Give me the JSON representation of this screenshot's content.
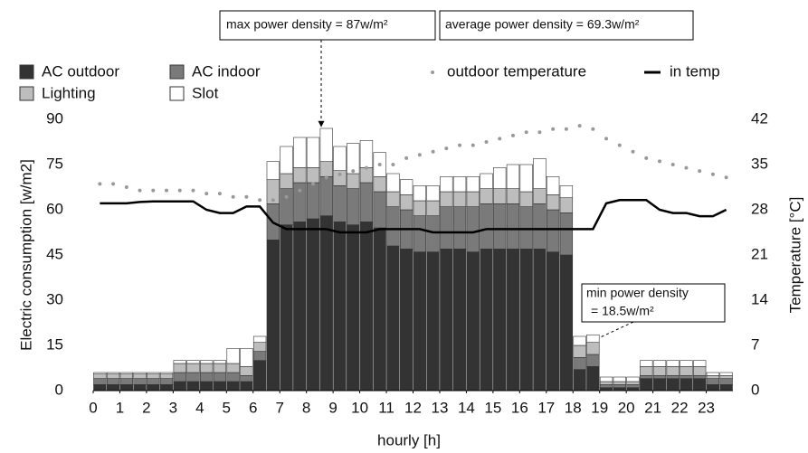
{
  "chart_data": {
    "type": "bar",
    "stacked": true,
    "ylabel": "Electric consumption [w/m2]",
    "y2label": "Temperature [°C]",
    "xlabel": "hourly [h]",
    "x": [
      0.25,
      0.75,
      1.25,
      1.75,
      2.25,
      2.75,
      3.25,
      3.75,
      4.25,
      4.75,
      5.25,
      5.75,
      6.25,
      6.75,
      7.25,
      7.75,
      8.25,
      8.75,
      9.25,
      9.75,
      10.25,
      10.75,
      11.25,
      11.75,
      12.25,
      12.75,
      13.25,
      13.75,
      14.25,
      14.75,
      15.25,
      15.75,
      16.25,
      16.75,
      17.25,
      17.75,
      18.25,
      18.75,
      19.25,
      19.75,
      20.25,
      20.75,
      21.25,
      21.75,
      22.25,
      22.75,
      23.25,
      23.75
    ],
    "xlim": [
      0,
      24
    ],
    "xticks": [
      0,
      1,
      2,
      3,
      4,
      5,
      6,
      7,
      8,
      9,
      10,
      11,
      12,
      13,
      14,
      15,
      16,
      17,
      18,
      19,
      20,
      21,
      22,
      23
    ],
    "ylim": [
      0,
      90
    ],
    "yticks": [
      0,
      15,
      30,
      45,
      60,
      75,
      90
    ],
    "y2lim": [
      0,
      42
    ],
    "y2ticks": [
      0,
      7,
      14,
      21,
      28,
      35,
      42
    ],
    "series": [
      {
        "name": "AC outdoor",
        "color": "#333333",
        "values": [
          2,
          2,
          2,
          2,
          2,
          2,
          3,
          3,
          3,
          3,
          3,
          3,
          10,
          50,
          55,
          56,
          57,
          58,
          56,
          55,
          56,
          54,
          48,
          47,
          46,
          46,
          47,
          47,
          46,
          47,
          47,
          47,
          47,
          47,
          46,
          45,
          7,
          8,
          1,
          1,
          1,
          4,
          4,
          4,
          4,
          4,
          2,
          2
        ]
      },
      {
        "name": "AC indoor",
        "color": "#7a7a7a",
        "values": [
          2,
          2,
          2,
          2,
          2,
          2,
          3,
          3,
          3,
          3,
          3,
          2,
          3,
          12,
          12,
          13,
          12,
          13,
          12,
          12,
          13,
          12,
          13,
          13,
          12,
          12,
          14,
          14,
          15,
          15,
          15,
          15,
          14,
          15,
          14,
          14,
          4,
          4,
          1,
          1,
          1,
          1,
          1,
          1,
          1,
          1,
          2,
          2
        ]
      },
      {
        "name": "Lighting",
        "color": "#bdbdbd",
        "values": [
          1.5,
          1.5,
          1.5,
          1.5,
          1.5,
          1.5,
          3,
          3,
          3,
          3,
          3,
          3,
          3,
          8,
          5,
          5,
          5,
          5,
          5,
          5,
          5,
          5,
          5,
          5,
          5,
          5,
          5,
          5,
          5,
          5,
          5,
          5,
          5,
          5,
          5,
          5,
          4,
          4,
          1,
          1,
          1,
          3,
          3,
          3,
          3,
          3,
          1,
          1
        ]
      },
      {
        "name": "Slot",
        "color": "#ffffff",
        "values": [
          0.5,
          0.5,
          0.5,
          0.5,
          0.5,
          0.5,
          1,
          1,
          1,
          1,
          5,
          6,
          2,
          6,
          9,
          10,
          10,
          11,
          8,
          10,
          9,
          8,
          6,
          5,
          5,
          5,
          5,
          5,
          5,
          5,
          7,
          8,
          9,
          10,
          6,
          4,
          3,
          2.5,
          1.5,
          1.5,
          1.5,
          2,
          2,
          2,
          2,
          2,
          1,
          1
        ]
      },
      {
        "name": "outdoor temperature",
        "type": "dots",
        "axis": "y2",
        "color": "#999999",
        "values": [
          32,
          32,
          31.5,
          31,
          31,
          31,
          31,
          31,
          30.5,
          30.5,
          30,
          30,
          29.5,
          29.5,
          30,
          31,
          32,
          33,
          33.5,
          34,
          34.5,
          35,
          35,
          36,
          36.5,
          37,
          37.5,
          38,
          38,
          38.5,
          39,
          39.5,
          40,
          40,
          40.5,
          40.5,
          41,
          40.5,
          39,
          38,
          37,
          36,
          35.5,
          35,
          34.5,
          34,
          33.5,
          33
        ]
      },
      {
        "name": "in temp",
        "type": "line",
        "axis": "y2",
        "color": "#000000",
        "values": [
          29,
          29,
          29,
          29.2,
          29.3,
          29.3,
          29.3,
          29.3,
          28,
          27.5,
          27.5,
          28.5,
          28.5,
          26,
          25,
          25,
          25,
          25,
          24.5,
          24.5,
          24.5,
          25,
          25,
          25,
          25,
          24.5,
          24.5,
          24.5,
          24.5,
          25,
          25,
          25,
          25,
          25,
          25,
          25,
          25,
          25,
          29,
          29.5,
          29.5,
          29.5,
          28,
          27.5,
          27.5,
          27,
          27,
          28
        ]
      }
    ],
    "annotations": {
      "max": "max power density = 87w/m²",
      "average": "average power density = 69.3w/m²",
      "min": [
        "min power density",
        "= 18.5w/m²"
      ]
    }
  }
}
